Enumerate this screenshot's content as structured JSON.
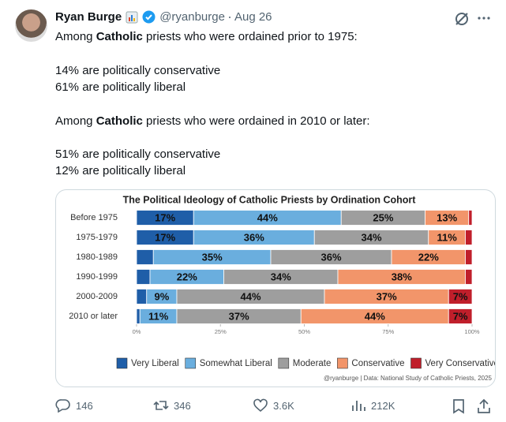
{
  "tweet": {
    "author": "Ryan Burge",
    "handle": "@ryanburge",
    "date": "Aug 26",
    "lines": [
      [
        "Among ",
        "Catholic",
        " priests who were ordained prior to 1975:"
      ],
      [
        "14% are politically conservative"
      ],
      [
        "61% are politically liberal"
      ],
      [
        "Among ",
        "Catholic",
        " priests who were ordained in 2010 or later:"
      ],
      [
        "51% are politically conservative"
      ],
      [
        "12% are politically liberal"
      ]
    ],
    "stats": {
      "replies": "146",
      "reposts": "346",
      "likes": "3.6K",
      "views": "212K"
    }
  },
  "chart_data": {
    "type": "stacked_bar_horizontal",
    "title": "The Political Ideology of Catholic Priests by Ordination Cohort",
    "categories": [
      "Before 1975",
      "1975-1979",
      "1980-1989",
      "1990-1999",
      "2000-2009",
      "2010 or later"
    ],
    "series": [
      {
        "name": "Very Liberal",
        "color": "#1f5ea8",
        "values": [
          17,
          17,
          5,
          4,
          3,
          1
        ],
        "value_labels": [
          "17%",
          "17%",
          null,
          null,
          null,
          null
        ]
      },
      {
        "name": "Somewhat Liberal",
        "color": "#6aaede",
        "values": [
          44,
          36,
          35,
          22,
          9,
          11
        ],
        "value_labels": [
          "44%",
          "36%",
          "35%",
          "22%",
          "9%",
          "11%"
        ]
      },
      {
        "name": "Moderate",
        "color": "#9e9e9e",
        "values": [
          25,
          34,
          36,
          34,
          44,
          37
        ],
        "value_labels": [
          "25%",
          "34%",
          "36%",
          "34%",
          "44%",
          "37%"
        ]
      },
      {
        "name": "Conservative",
        "color": "#f2956a",
        "values": [
          13,
          11,
          22,
          38,
          37,
          44
        ],
        "value_labels": [
          "13%",
          "11%",
          "22%",
          "38%",
          "37%",
          "44%"
        ]
      },
      {
        "name": "Very Conservative",
        "color": "#c01f2b",
        "values": [
          1,
          2,
          2,
          2,
          7,
          7
        ],
        "value_labels": [
          null,
          null,
          null,
          null,
          "7%",
          "7%"
        ]
      }
    ],
    "xlim": [
      0,
      100
    ],
    "xticks": [
      {
        "value": 0,
        "label": "0%"
      },
      {
        "value": 25,
        "label": "25%"
      },
      {
        "value": 50,
        "label": "50%"
      },
      {
        "value": 75,
        "label": "75%"
      },
      {
        "value": 100,
        "label": "100%"
      }
    ],
    "legend": "bottom",
    "source": "@ryanburge | Data: National Study of Catholic Priests, 2025"
  }
}
